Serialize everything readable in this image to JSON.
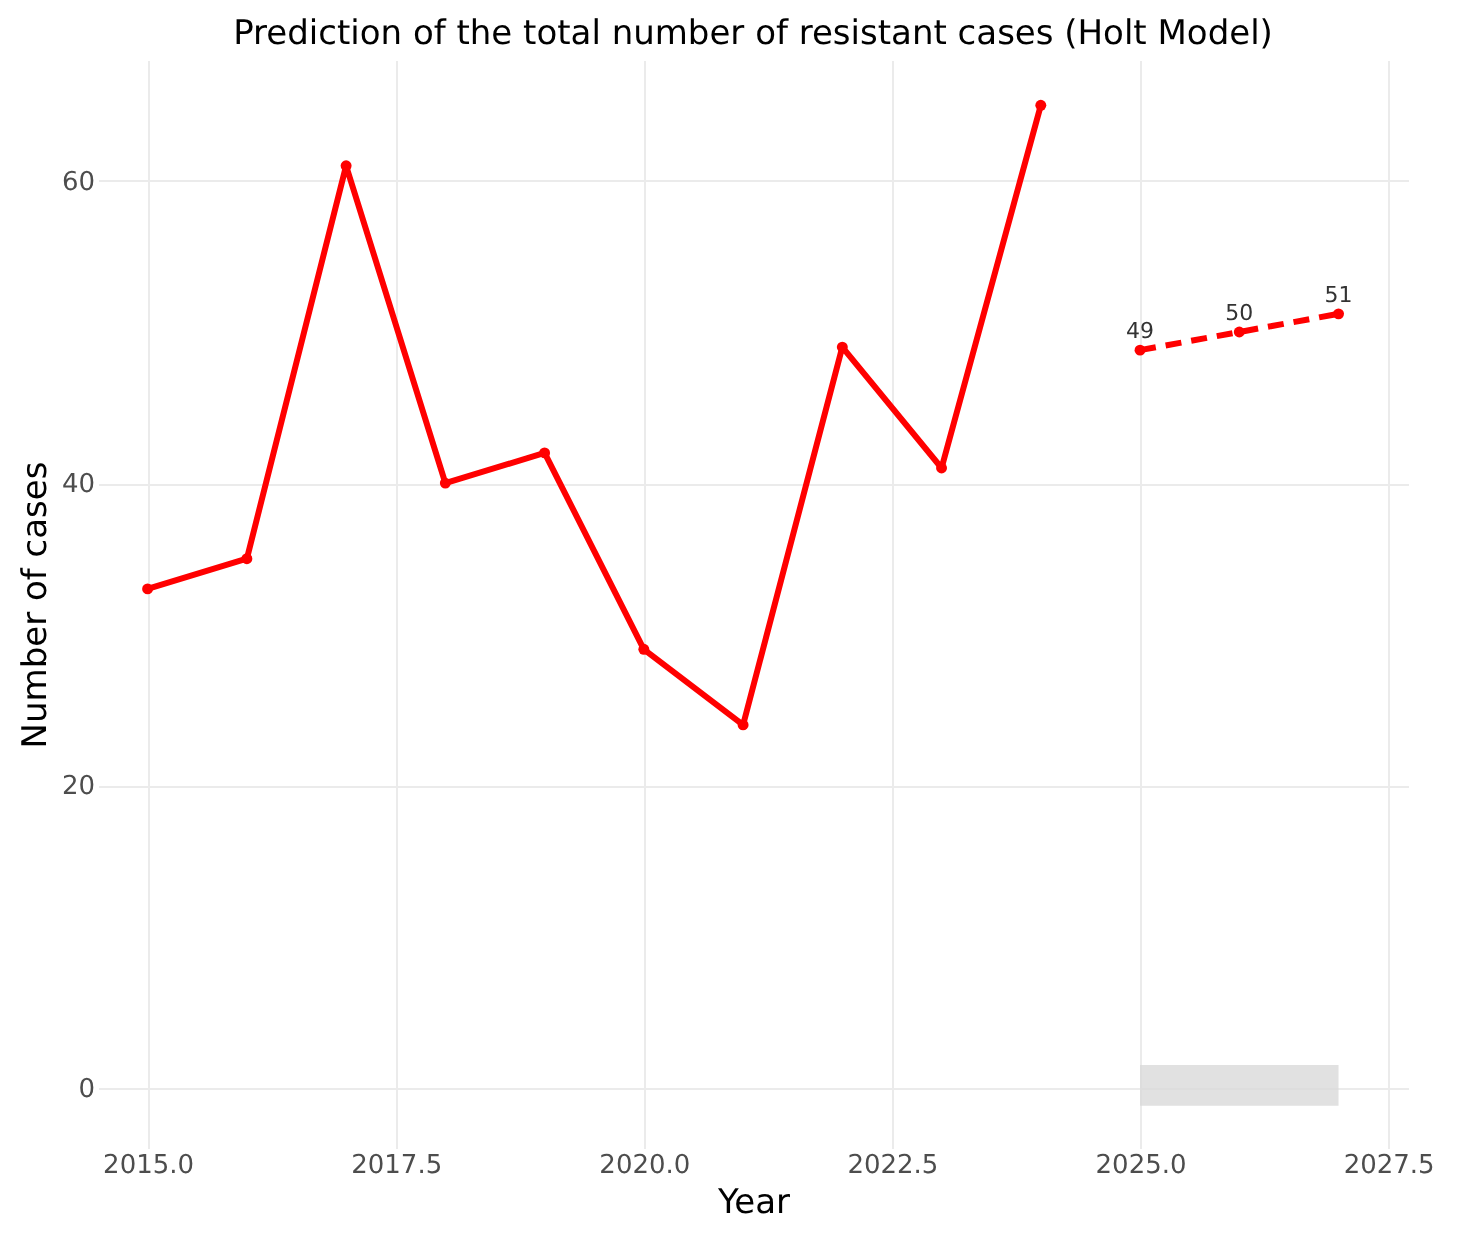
{
  "chart_data": {
    "type": "line",
    "title": "Prediction of the total number of resistant cases (Holt Model)",
    "xlabel": "Year",
    "ylabel": "Number of cases",
    "series": [
      {
        "type": "line",
        "color": "#ff0000",
        "x": [
          2015,
          2016,
          2017,
          2018,
          2019,
          2020,
          2021,
          2022,
          2023,
          2024
        ],
        "values": [
          33,
          35,
          61,
          40,
          42,
          29,
          24,
          49,
          41,
          65
        ],
        "line_style": "solid"
      },
      {
        "type": "line",
        "color": "#ff0000",
        "x": [
          2025,
          2026,
          2027
        ],
        "values": [
          48.8,
          50.0,
          51.2
        ],
        "line_style": "dashed",
        "value_labels": [
          "49",
          "50",
          "51"
        ],
        "lower": [
          -1.2,
          -1.2,
          -1.2
        ],
        "upper": [
          1.5,
          1.5,
          1.5
        ]
      }
    ],
    "xlim": [
      2014.5,
      2027.7
    ],
    "ylim": [
      -4,
      68
    ],
    "xticks": [
      {
        "value": 2015,
        "label": "2015.0"
      },
      {
        "value": 2017.5,
        "label": "2017.5"
      },
      {
        "value": 2020,
        "label": "2020.0"
      },
      {
        "value": 2022.5,
        "label": "2022.5"
      },
      {
        "value": 2025,
        "label": "2025.0"
      },
      {
        "value": 2027.5,
        "label": "2027.5"
      }
    ],
    "yticks": [
      0,
      20,
      40,
      60
    ],
    "grid": true,
    "marker": "circle"
  }
}
